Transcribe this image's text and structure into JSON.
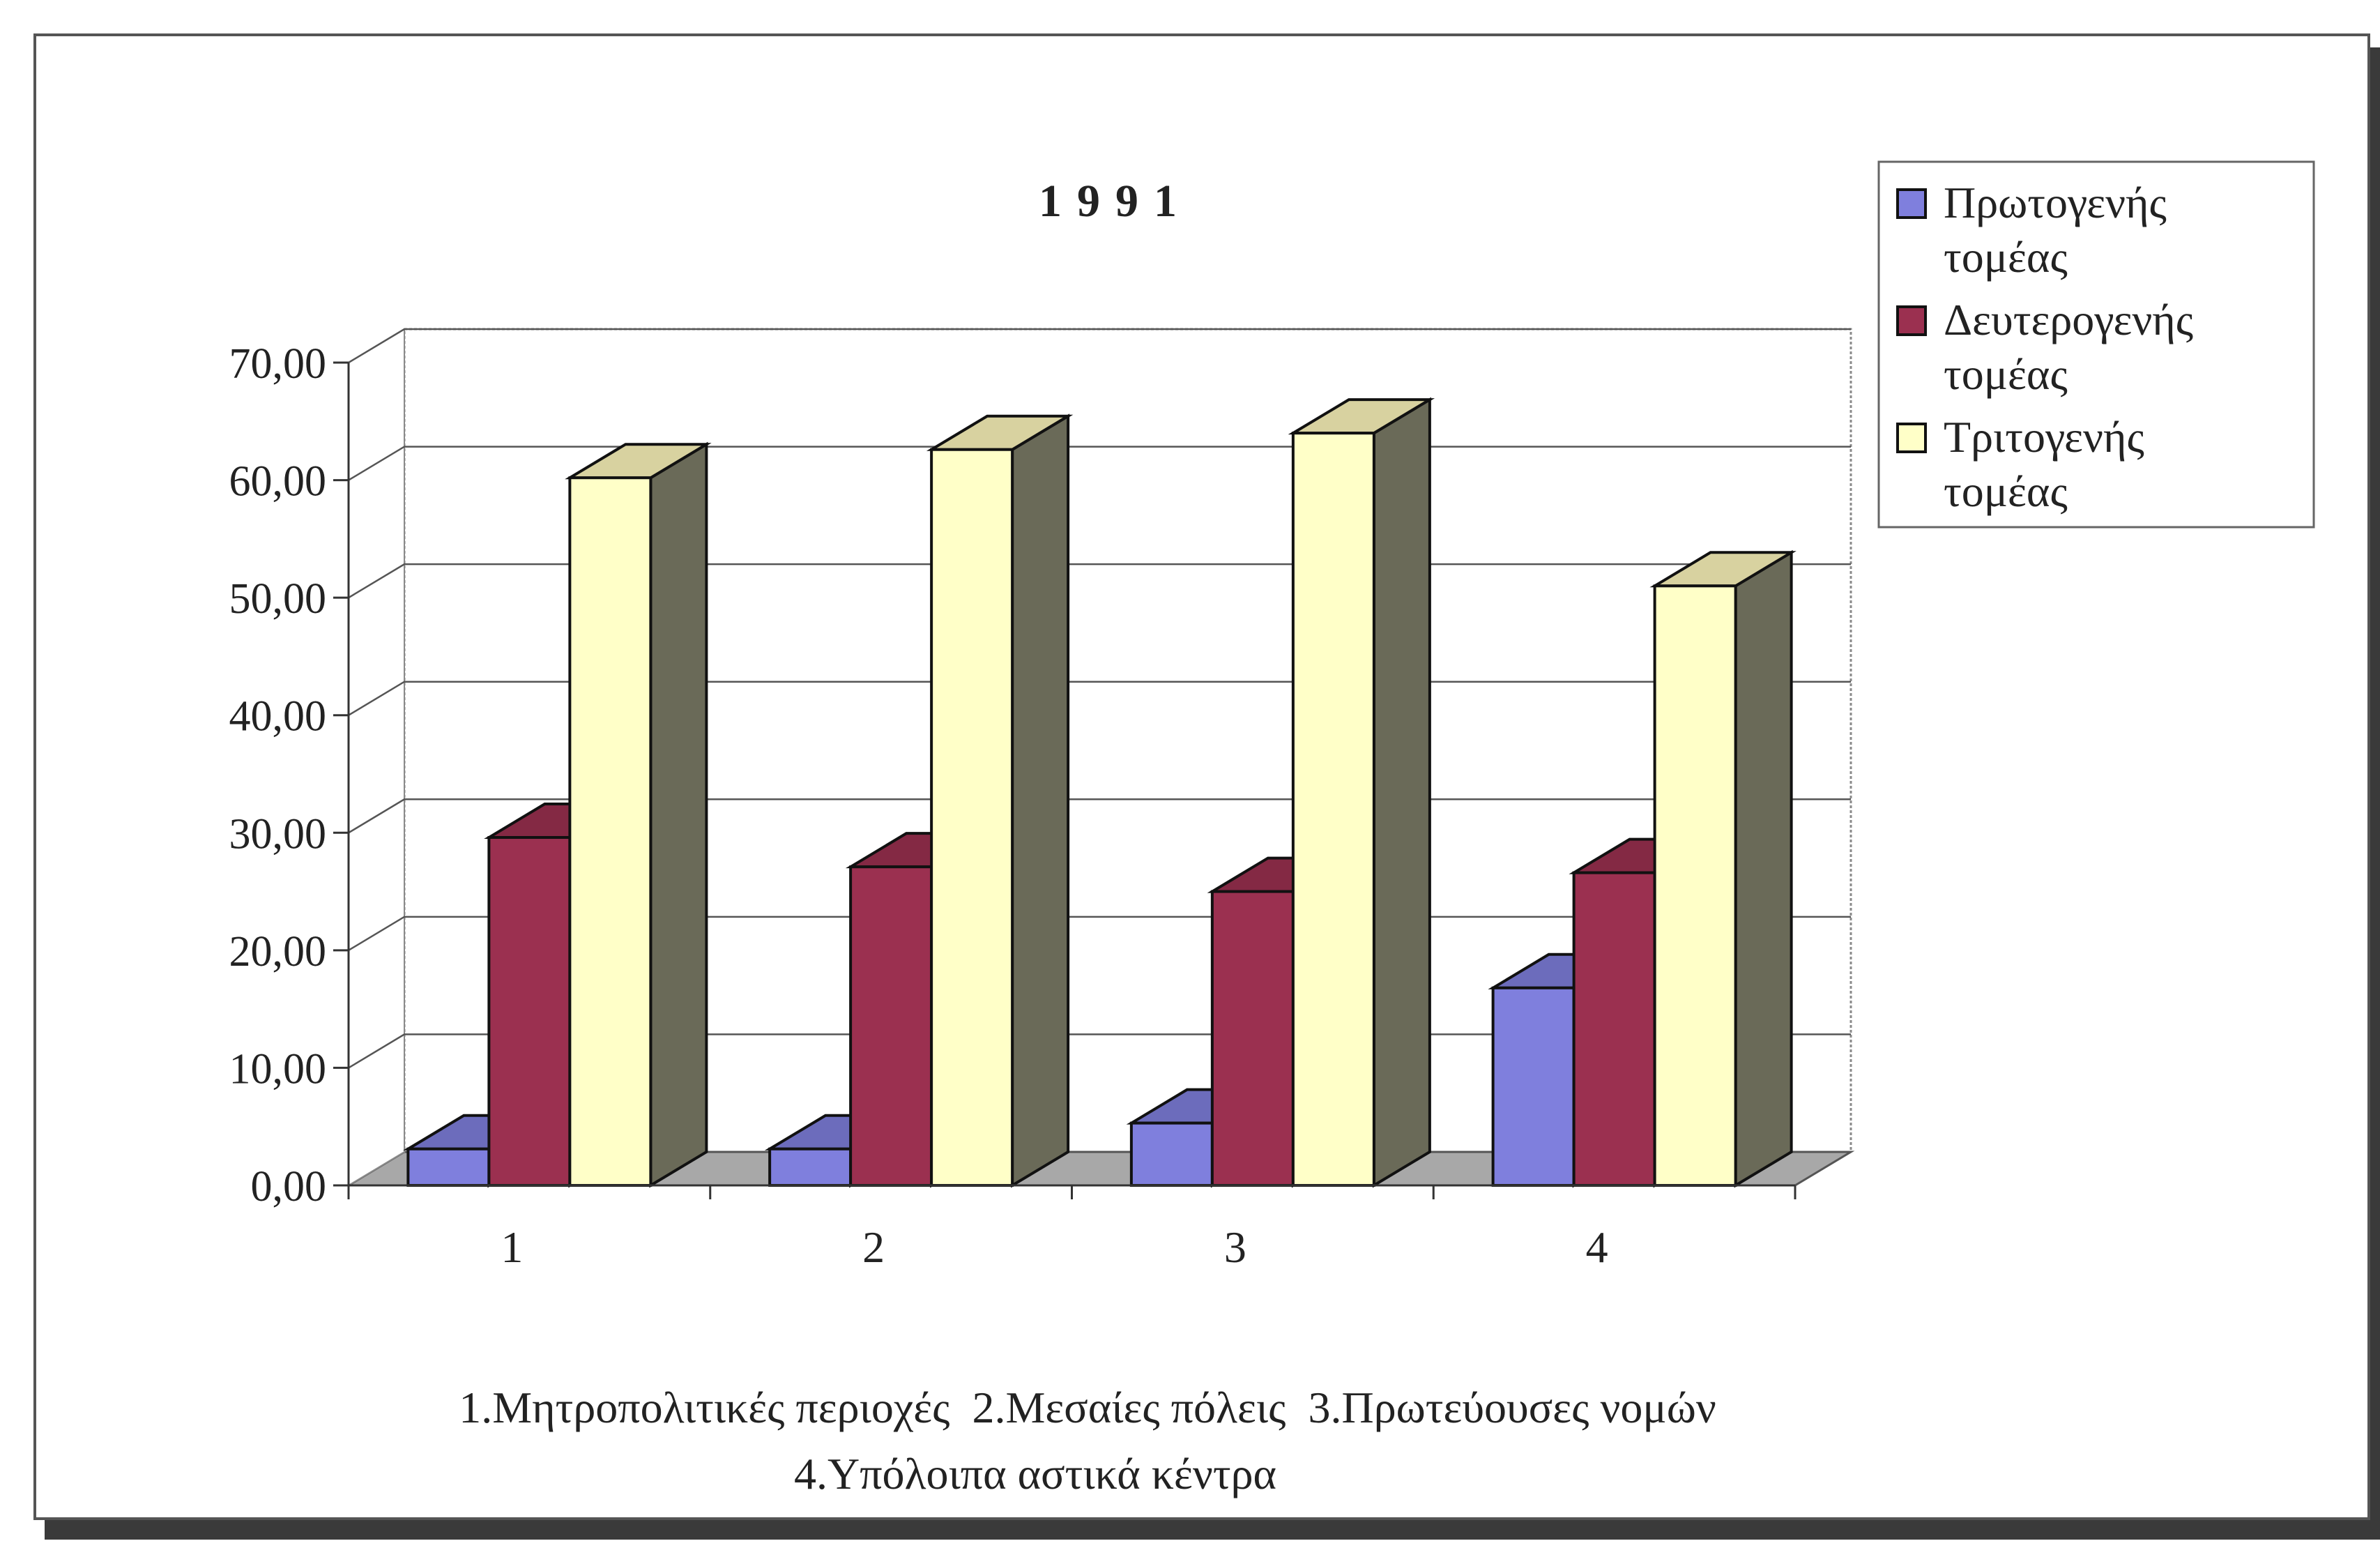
{
  "chart_data": {
    "type": "bar",
    "title": "1991",
    "categories": [
      "1",
      "2",
      "3",
      "4"
    ],
    "series": [
      {
        "name": "Πρωτογενής τομέας",
        "values": [
          3.1,
          3.1,
          5.3,
          16.8
        ],
        "color": "#7f7fdd"
      },
      {
        "name": "Δευτερογενής τομέας",
        "values": [
          29.6,
          27.1,
          25.0,
          26.6
        ],
        "color": "#9b3050"
      },
      {
        "name": "Τριτογενής τομέας",
        "values": [
          60.2,
          62.6,
          64.0,
          51.0
        ],
        "color": "#ffffc8"
      }
    ],
    "y_ticks": [
      "0,00",
      "10,00",
      "20,00",
      "30,00",
      "40,00",
      "50,00",
      "60,00",
      "70,00"
    ],
    "ylim": [
      0,
      70
    ],
    "grid": true,
    "legend": {
      "placement": "right",
      "entries": [
        {
          "lines": [
            "Πρωτογενής",
            "τομέας"
          ]
        },
        {
          "lines": [
            "Δευτερογενής",
            "τομέας"
          ]
        },
        {
          "lines": [
            "Τριτογενής",
            "τομέας"
          ]
        }
      ]
    },
    "caption": {
      "line1": "1.Μητροπολιτικές περιοχές  2.Μεσαίες πόλεις  3.Πρωτεύουσες νομών",
      "line2": "4.Υπόλοιπα αστικά κέντρα"
    }
  },
  "colors": {
    "side_dark": "#6a6a58",
    "floor": "#a8a8a8",
    "top_yellow": "#d8d2a0"
  }
}
